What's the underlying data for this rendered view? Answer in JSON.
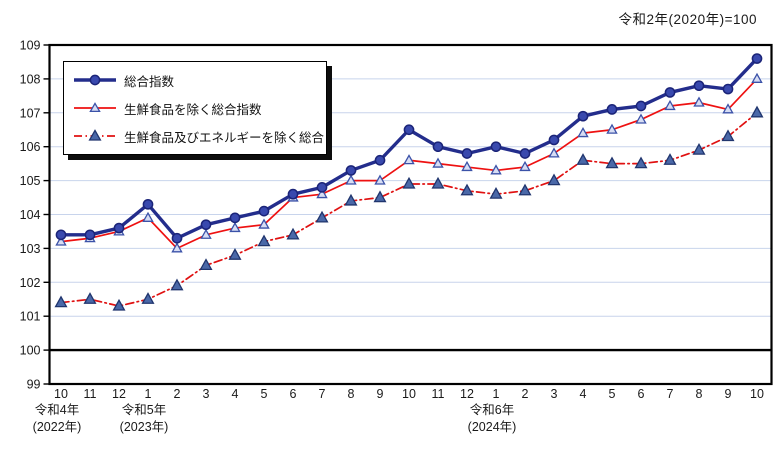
{
  "title": "令和2年(2020年)=100",
  "chart_data": {
    "type": "line",
    "title": "令和2年(2020年)=100",
    "x_tick_labels": [
      "10",
      "11",
      "12",
      "1",
      "2",
      "3",
      "4",
      "5",
      "6",
      "7",
      "8",
      "9",
      "10",
      "11",
      "12",
      "1",
      "2",
      "3",
      "4",
      "5",
      "6",
      "7",
      "8",
      "9",
      "10"
    ],
    "year_annotations": [
      {
        "era": "令和4年",
        "year": "(2022年)",
        "month_index": 0
      },
      {
        "era": "令和5年",
        "year": "(2023年)",
        "month_index": 3
      },
      {
        "era": "令和6年",
        "year": "(2024年)",
        "month_index": 15
      }
    ],
    "ylim": [
      99,
      109
    ],
    "y_ticks": [
      99,
      100,
      101,
      102,
      103,
      104,
      105,
      106,
      107,
      108,
      109
    ],
    "baseline_value": 100,
    "grid": true,
    "legend_position": "upper-left",
    "series": [
      {
        "name": "総合指数",
        "line_style": "solid",
        "line_width": 3.4,
        "color": "#232d8c",
        "marker": "circle",
        "marker_fill": "#3949ae",
        "marker_stroke": "#1b2478",
        "values": [
          103.4,
          103.4,
          103.6,
          104.3,
          103.3,
          103.7,
          103.9,
          104.1,
          104.6,
          104.8,
          105.3,
          105.6,
          106.5,
          106.0,
          105.8,
          106.0,
          105.8,
          106.2,
          106.9,
          107.1,
          107.2,
          107.6,
          107.8,
          107.7,
          108.6
        ]
      },
      {
        "name": "生鮮食品を除く総合指数",
        "line_style": "solid",
        "line_width": 1.7,
        "color": "#ee1111",
        "marker": "triangle",
        "marker_fill": "#d7ddf4",
        "marker_stroke": "#3b52a8",
        "values": [
          103.2,
          103.3,
          103.5,
          103.9,
          103.0,
          103.4,
          103.6,
          103.7,
          104.5,
          104.6,
          105.0,
          105.0,
          105.6,
          105.5,
          105.4,
          105.3,
          105.4,
          105.8,
          106.4,
          106.5,
          106.8,
          107.2,
          107.3,
          107.1,
          108.0
        ]
      },
      {
        "name": "生鮮食品及びエネルギーを除く総合",
        "line_style": "dash-dot",
        "line_width": 1.7,
        "color": "#e01111",
        "marker": "triangle",
        "marker_fill": "#4a68a8",
        "marker_stroke": "#20356e",
        "values": [
          101.4,
          101.5,
          101.3,
          101.5,
          101.9,
          102.5,
          102.8,
          103.2,
          103.4,
          103.9,
          104.4,
          104.5,
          104.9,
          104.9,
          104.7,
          104.6,
          104.7,
          105.0,
          105.6,
          105.5,
          105.5,
          105.6,
          105.9,
          106.3,
          107.0
        ]
      }
    ],
    "colors": {
      "grid": "#c8d4ec",
      "frame": "#000000",
      "baseline": "#000000",
      "background": "#ffffff",
      "tick_text": "#1a1a1a"
    }
  }
}
